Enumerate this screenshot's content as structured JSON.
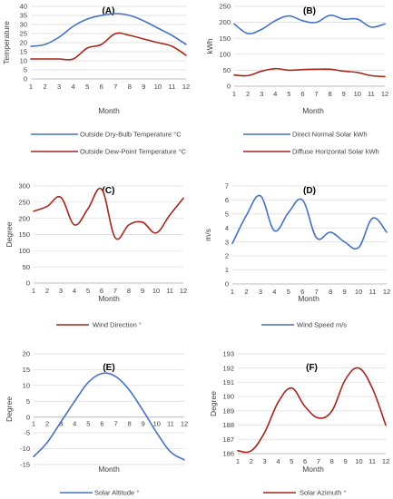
{
  "colors": {
    "blue": "#4472C4",
    "red": "#A5261B",
    "grid": "#d9d9d9",
    "axis": "#bfbfbf"
  },
  "chart_data": [
    {
      "id": "A",
      "type": "line",
      "title": "(A)",
      "ylabel": "Temperature",
      "xlabel": "Month",
      "x": [
        1,
        2,
        3,
        4,
        5,
        6,
        7,
        8,
        9,
        10,
        11,
        12
      ],
      "ylim": [
        0,
        40
      ],
      "yticks": [
        0,
        5,
        10,
        15,
        20,
        25,
        30,
        35,
        40
      ],
      "grid": true,
      "legend_placement": "bottom",
      "series": [
        {
          "name": "Outside Dry-Bulb Temperature °C",
          "color": "#4472C4",
          "values": [
            18,
            19,
            23,
            29,
            33,
            35,
            36,
            35,
            32,
            28,
            24,
            19
          ]
        },
        {
          "name": "Outside Dew-Point Temperature °C",
          "color": "#A5261B",
          "values": [
            11,
            11,
            11,
            11,
            17,
            19,
            25,
            24,
            22,
            20,
            18,
            13
          ]
        }
      ]
    },
    {
      "id": "B",
      "type": "line",
      "title": "(B)",
      "ylabel": "kWh",
      "xlabel": "Month",
      "x": [
        1,
        2,
        3,
        4,
        5,
        6,
        7,
        8,
        9,
        10,
        11,
        12
      ],
      "ylim": [
        0,
        250
      ],
      "yticks": [
        0,
        50,
        100,
        150,
        200,
        250
      ],
      "grid": true,
      "legend_placement": "bottom",
      "series": [
        {
          "name": "Direct Normal Solar kWh",
          "color": "#4472C4",
          "values": [
            195,
            165,
            178,
            205,
            220,
            205,
            200,
            222,
            210,
            210,
            185,
            195
          ]
        },
        {
          "name": "Diffuse Horizontal Solar kWh",
          "color": "#A5261B",
          "values": [
            35,
            33,
            47,
            55,
            50,
            52,
            53,
            53,
            47,
            43,
            33,
            30
          ]
        }
      ]
    },
    {
      "id": "C",
      "type": "line",
      "title": "(C)",
      "ylabel": "Degree",
      "xlabel": "Month",
      "x": [
        1,
        2,
        3,
        4,
        5,
        6,
        7,
        8,
        9,
        10,
        11,
        12
      ],
      "ylim": [
        0,
        300
      ],
      "yticks": [
        0,
        50,
        100,
        150,
        200,
        250,
        300
      ],
      "grid": true,
      "legend_placement": "bottom",
      "series": [
        {
          "name": "Wind Direction °",
          "color": "#A5261B",
          "values": [
            222,
            237,
            265,
            180,
            230,
            290,
            140,
            180,
            188,
            155,
            210,
            262
          ]
        }
      ]
    },
    {
      "id": "D",
      "type": "line",
      "title": "(D)",
      "ylabel": "m/s",
      "xlabel": "Month",
      "x": [
        1,
        2,
        3,
        4,
        5,
        6,
        7,
        8,
        9,
        10,
        11,
        12
      ],
      "ylim": [
        0,
        7
      ],
      "yticks": [
        0,
        1,
        2,
        3,
        4,
        5,
        6,
        7
      ],
      "grid": true,
      "legend_placement": "bottom",
      "series": [
        {
          "name": "Wind Speed m/s",
          "color": "#4472C4",
          "values": [
            2.9,
            4.9,
            6.3,
            3.8,
            5.1,
            6.0,
            3.3,
            3.7,
            3.0,
            2.6,
            4.7,
            3.7
          ]
        }
      ]
    },
    {
      "id": "E",
      "type": "line",
      "title": "(E)",
      "ylabel": "Degree",
      "xlabel": "Month",
      "x": [
        1,
        2,
        3,
        4,
        5,
        6,
        7,
        8,
        9,
        10,
        11,
        12
      ],
      "ylim": [
        -15,
        20
      ],
      "yticks": [
        -15,
        -10,
        -5,
        0,
        5,
        10,
        15,
        20
      ],
      "grid": true,
      "legend_placement": "bottom",
      "x_axis_at_zero": true,
      "series": [
        {
          "name": "Solar Altitude °",
          "color": "#4472C4",
          "values": [
            -12.5,
            -8.0,
            -1.5,
            5.0,
            11.0,
            13.8,
            12.8,
            8.5,
            2.0,
            -5.0,
            -11.0,
            -13.5
          ]
        }
      ]
    },
    {
      "id": "F",
      "type": "line",
      "title": "(F)",
      "ylabel": "Degree",
      "xlabel": "Month",
      "x": [
        1,
        2,
        3,
        4,
        5,
        6,
        7,
        8,
        9,
        10,
        11,
        12
      ],
      "ylim": [
        186,
        193
      ],
      "yticks": [
        186,
        187,
        188,
        189,
        190,
        191,
        192,
        193
      ],
      "grid": true,
      "legend_placement": "bottom",
      "series": [
        {
          "name": "Solar Azimuth °",
          "color": "#A5261B",
          "values": [
            186.2,
            186.2,
            187.5,
            189.6,
            190.6,
            189.3,
            188.5,
            189.0,
            191.2,
            192.0,
            190.6,
            188.0
          ]
        }
      ]
    }
  ]
}
